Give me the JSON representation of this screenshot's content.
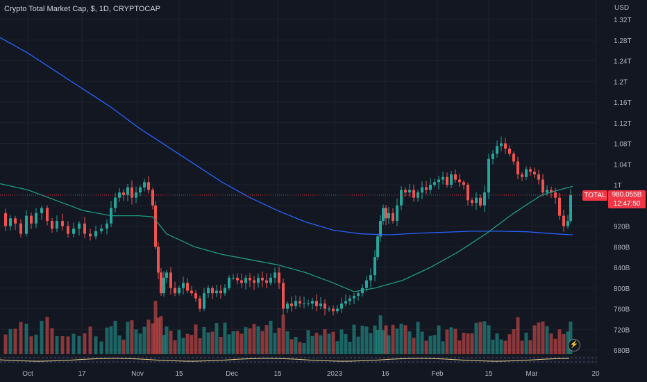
{
  "header": {
    "title": "Crypto Total Market Cap, $, 1D, CRYPTOCAP",
    "currency": "USD"
  },
  "price_tag": {
    "symbol": "TOTAL",
    "value": "980.055B",
    "countdown": "12:47:50"
  },
  "icons": {
    "indicator": "lightning-icon"
  },
  "colors": {
    "background": "#131722",
    "up": "#26a69a",
    "down": "#ef5350",
    "ma_long": "#2962ff",
    "ma_short": "#1e9c84",
    "price_line": "#f23645"
  },
  "chart_data": {
    "type": "candlestick",
    "y_unit": "USD",
    "ylim": [
      660,
      1330
    ],
    "y_ticks": [
      "680B",
      "720B",
      "760B",
      "800B",
      "840B",
      "880B",
      "920B",
      "960B",
      "1T",
      "1.04T",
      "1.08T",
      "1.12T",
      "1.16T",
      "1.2T",
      "1.24T",
      "1.28T",
      "1.32T"
    ],
    "x_ticks": [
      "Oct",
      "17",
      "Nov",
      "15",
      "Dec",
      "15",
      "2023",
      "16",
      "Feb",
      "15",
      "Mar",
      "20"
    ],
    "last_price": 980.055,
    "grid": true,
    "candles": [
      [
        0,
        0,
        0,
        0
      ]
    ],
    "close_path": [
      [
        0,
        945
      ],
      [
        8,
        920
      ],
      [
        15,
        935
      ],
      [
        22,
        925
      ],
      [
        30,
        905
      ],
      [
        38,
        940
      ],
      [
        45,
        925
      ],
      [
        52,
        945
      ],
      [
        60,
        955
      ],
      [
        68,
        930
      ],
      [
        75,
        915
      ],
      [
        82,
        930
      ],
      [
        90,
        920
      ],
      [
        98,
        905
      ],
      [
        106,
        915
      ],
      [
        114,
        925
      ],
      [
        122,
        905
      ],
      [
        130,
        900
      ],
      [
        138,
        910
      ],
      [
        146,
        915
      ],
      [
        154,
        925
      ],
      [
        160,
        955
      ],
      [
        166,
        975
      ],
      [
        172,
        985
      ],
      [
        178,
        980
      ],
      [
        184,
        995
      ],
      [
        190,
        975
      ],
      [
        196,
        985
      ],
      [
        202,
        995
      ],
      [
        208,
        1005
      ],
      [
        214,
        990
      ],
      [
        220,
        960
      ],
      [
        224,
        880
      ],
      [
        228,
        830
      ],
      [
        232,
        790
      ],
      [
        236,
        820
      ],
      [
        240,
        830
      ],
      [
        246,
        800
      ],
      [
        252,
        790
      ],
      [
        258,
        800
      ],
      [
        264,
        810
      ],
      [
        270,
        795
      ],
      [
        276,
        790
      ],
      [
        282,
        780
      ],
      [
        288,
        760
      ],
      [
        294,
        790
      ],
      [
        300,
        800
      ],
      [
        306,
        790
      ],
      [
        312,
        795
      ],
      [
        318,
        790
      ],
      [
        324,
        800
      ],
      [
        330,
        820
      ],
      [
        336,
        820
      ],
      [
        342,
        815
      ],
      [
        348,
        810
      ],
      [
        354,
        820
      ],
      [
        360,
        815
      ],
      [
        366,
        810
      ],
      [
        372,
        820
      ],
      [
        378,
        815
      ],
      [
        384,
        810
      ],
      [
        390,
        820
      ],
      [
        396,
        830
      ],
      [
        402,
        810
      ],
      [
        408,
        760
      ],
      [
        414,
        770
      ],
      [
        420,
        765
      ],
      [
        426,
        775
      ],
      [
        432,
        770
      ],
      [
        438,
        770
      ],
      [
        444,
        770
      ],
      [
        450,
        775
      ],
      [
        456,
        765
      ],
      [
        462,
        770
      ],
      [
        468,
        760
      ],
      [
        474,
        760
      ],
      [
        480,
        755
      ],
      [
        486,
        760
      ],
      [
        492,
        770
      ],
      [
        498,
        775
      ],
      [
        504,
        780
      ],
      [
        510,
        785
      ],
      [
        516,
        790
      ],
      [
        522,
        800
      ],
      [
        528,
        815
      ],
      [
        534,
        825
      ],
      [
        540,
        860
      ],
      [
        544,
        900
      ],
      [
        548,
        930
      ],
      [
        552,
        955
      ],
      [
        556,
        935
      ],
      [
        560,
        945
      ],
      [
        566,
        930
      ],
      [
        572,
        960
      ],
      [
        578,
        990
      ],
      [
        584,
        985
      ],
      [
        590,
        990
      ],
      [
        596,
        975
      ],
      [
        602,
        985
      ],
      [
        608,
        995
      ],
      [
        614,
        990
      ],
      [
        620,
        1000
      ],
      [
        626,
        1005
      ],
      [
        632,
        1010
      ],
      [
        638,
        1015
      ],
      [
        644,
        1000
      ],
      [
        650,
        1020
      ],
      [
        656,
        1010
      ],
      [
        662,
        1005
      ],
      [
        668,
        1000
      ],
      [
        674,
        970
      ],
      [
        680,
        965
      ],
      [
        686,
        975
      ],
      [
        692,
        960
      ],
      [
        698,
        985
      ],
      [
        704,
        1050
      ],
      [
        710,
        1060
      ],
      [
        716,
        1075
      ],
      [
        722,
        1080
      ],
      [
        728,
        1070
      ],
      [
        734,
        1060
      ],
      [
        740,
        1045
      ],
      [
        746,
        1020
      ],
      [
        752,
        1015
      ],
      [
        758,
        1030
      ],
      [
        764,
        1025
      ],
      [
        770,
        1020
      ],
      [
        776,
        1010
      ],
      [
        782,
        985
      ],
      [
        788,
        990
      ],
      [
        794,
        985
      ],
      [
        800,
        975
      ],
      [
        806,
        940
      ],
      [
        812,
        920
      ],
      [
        818,
        930
      ],
      [
        822,
        980
      ]
    ],
    "ma_long_path": [
      [
        0,
        1285
      ],
      [
        40,
        1255
      ],
      [
        80,
        1220
      ],
      [
        120,
        1185
      ],
      [
        160,
        1150
      ],
      [
        200,
        1110
      ],
      [
        240,
        1075
      ],
      [
        280,
        1040
      ],
      [
        320,
        1005
      ],
      [
        360,
        975
      ],
      [
        400,
        950
      ],
      [
        440,
        928
      ],
      [
        480,
        912
      ],
      [
        520,
        905
      ],
      [
        560,
        903
      ],
      [
        600,
        906
      ],
      [
        640,
        908
      ],
      [
        680,
        910
      ],
      [
        720,
        910
      ],
      [
        760,
        909
      ],
      [
        800,
        905
      ],
      [
        825,
        903
      ]
    ],
    "ma_short_path": [
      [
        0,
        1002
      ],
      [
        40,
        990
      ],
      [
        80,
        970
      ],
      [
        120,
        950
      ],
      [
        160,
        940
      ],
      [
        200,
        940
      ],
      [
        220,
        938
      ],
      [
        240,
        905
      ],
      [
        280,
        880
      ],
      [
        320,
        865
      ],
      [
        360,
        855
      ],
      [
        400,
        845
      ],
      [
        440,
        830
      ],
      [
        480,
        810
      ],
      [
        510,
        793
      ],
      [
        540,
        800
      ],
      [
        580,
        815
      ],
      [
        620,
        840
      ],
      [
        660,
        870
      ],
      [
        700,
        905
      ],
      [
        740,
        945
      ],
      [
        780,
        980
      ],
      [
        800,
        988
      ],
      [
        825,
        997
      ]
    ]
  }
}
